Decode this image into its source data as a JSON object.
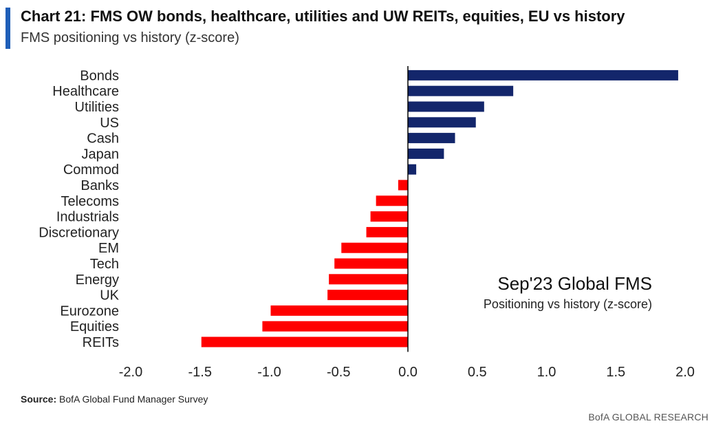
{
  "header": {
    "title": "Chart 21: FMS OW bonds, healthcare, utilities and UW REITs, equities, EU vs history",
    "subtitle": "FMS positioning vs history (z-score)"
  },
  "footer": {
    "source_label": "Source:",
    "source_text": "BofA Global Fund Manager Survey",
    "branding": "BofA GLOBAL RESEARCH"
  },
  "colors": {
    "positive": "#13266b",
    "negative": "#ff0000",
    "axis": "#000000",
    "accent_bar": "#1f5fb8"
  },
  "chart_data": {
    "type": "bar",
    "orientation": "horizontal",
    "categories": [
      "Bonds",
      "Healthcare",
      "Utilities",
      "US",
      "Cash",
      "Japan",
      "Commod",
      "Banks",
      "Telecoms",
      "Industrials",
      "Discretionary",
      "EM",
      "Tech",
      "Energy",
      "UK",
      "Eurozone",
      "Equities",
      "REITs"
    ],
    "values": [
      1.95,
      0.76,
      0.55,
      0.49,
      0.34,
      0.26,
      0.06,
      -0.07,
      -0.23,
      -0.27,
      -0.3,
      -0.48,
      -0.53,
      -0.57,
      -0.58,
      -0.99,
      -1.05,
      -1.49
    ],
    "xlim": [
      -2.0,
      2.0
    ],
    "xticks": [
      "-2.0",
      "-1.5",
      "-1.0",
      "-0.5",
      "0.0",
      "0.5",
      "1.0",
      "1.5",
      "2.0"
    ],
    "xtick_values": [
      -2.0,
      -1.5,
      -1.0,
      -0.5,
      0.0,
      0.5,
      1.0,
      1.5,
      2.0
    ],
    "annotation": {
      "title": "Sep'23 Global FMS",
      "subtitle": "Positioning vs history (z-score)"
    },
    "grid": false,
    "legend": "none"
  }
}
